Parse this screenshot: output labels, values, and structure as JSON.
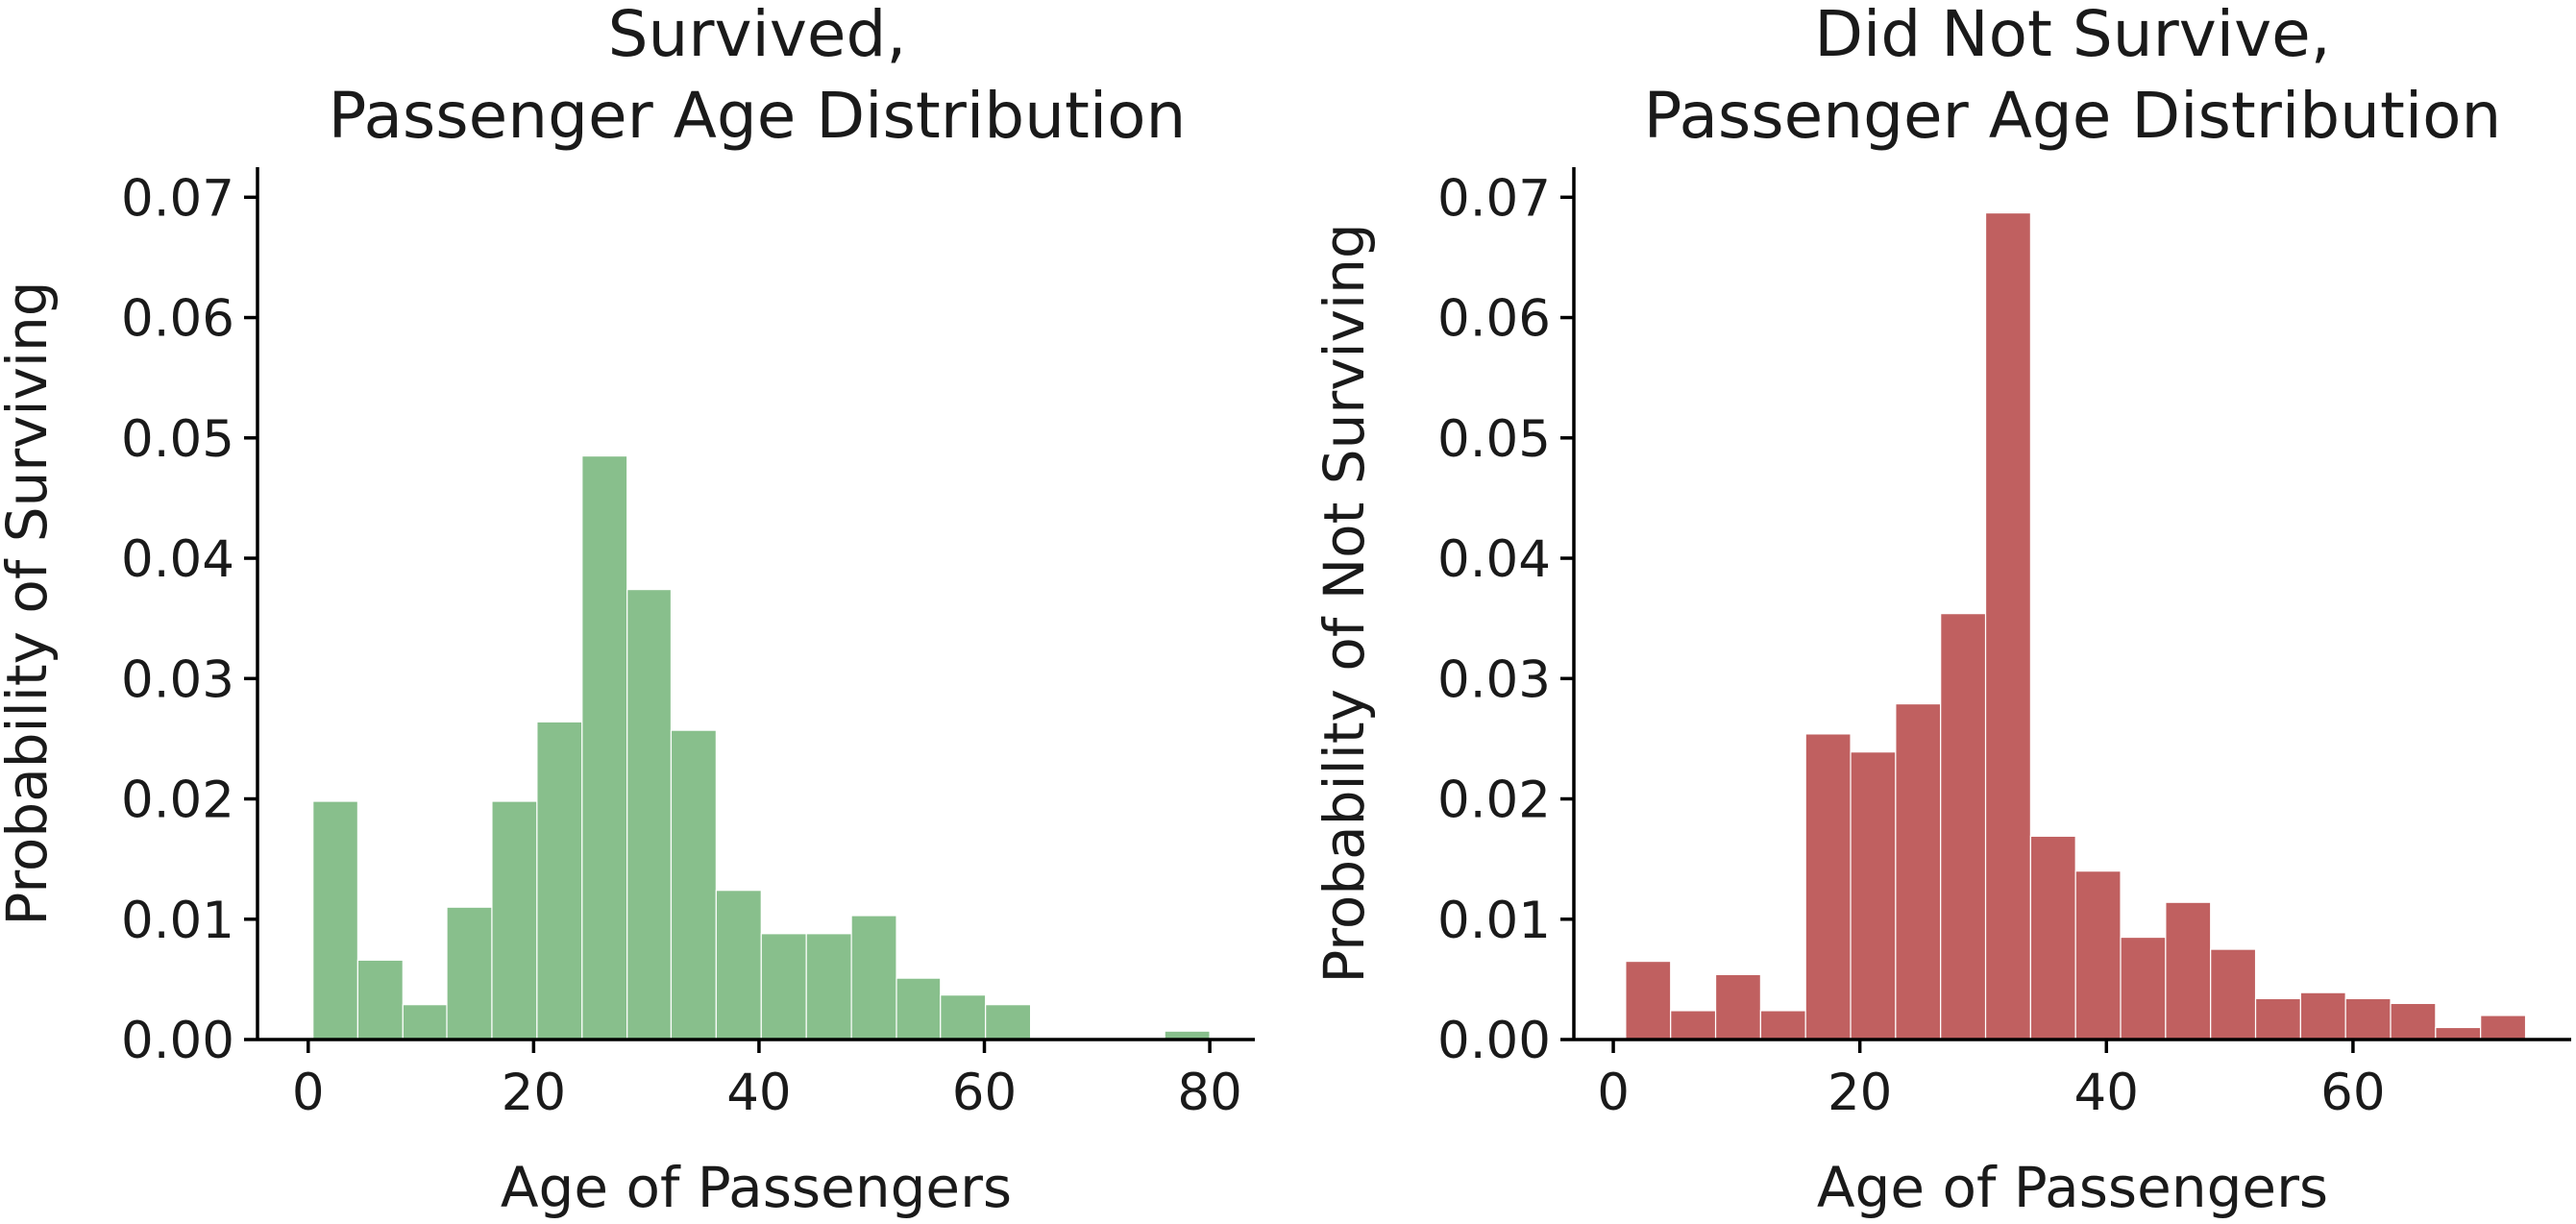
{
  "chart_data": [
    {
      "type": "bar",
      "title_lines": [
        "Survived,",
        "Passenger Age Distribution"
      ],
      "xlabel": "Age of Passengers",
      "ylabel": "Probability of Surviving",
      "xlim": [
        -4.5,
        84
      ],
      "ylim": [
        0,
        0.0725
      ],
      "xticks": [
        0,
        20,
        40,
        60,
        80
      ],
      "xtick_labels": [
        "0",
        "20",
        "40",
        "60",
        "80"
      ],
      "yticks": [
        0,
        0.01,
        0.02,
        0.03,
        0.04,
        0.05,
        0.06,
        0.07
      ],
      "ytick_labels": [
        "0.00",
        "0.01",
        "0.02",
        "0.03",
        "0.04",
        "0.05",
        "0.06",
        "0.07"
      ],
      "color": "#88bf8c",
      "bin_edges": [
        0.42,
        4.4,
        8.4,
        12.3,
        16.3,
        20.3,
        24.3,
        28.3,
        32.2,
        36.2,
        40.2,
        44.2,
        48.2,
        52.2,
        56.1,
        60.1,
        64.1,
        68.1,
        72.1,
        76.0,
        80.0
      ],
      "values": [
        0.0198,
        0.0066,
        0.0029,
        0.011,
        0.0198,
        0.0264,
        0.0485,
        0.0374,
        0.0257,
        0.0124,
        0.0088,
        0.0088,
        0.0103,
        0.0051,
        0.0037,
        0.0029,
        0.0,
        0.0,
        0.0,
        0.0007
      ]
    },
    {
      "type": "bar",
      "title_lines": [
        "Did Not Survive,",
        "Passenger Age Distribution"
      ],
      "xlabel": "Age of Passengers",
      "ylabel": "Probability of Not Surviving",
      "xlim": [
        -3.2,
        77.7
      ],
      "ylim": [
        0,
        0.0725
      ],
      "xticks": [
        0,
        20,
        40,
        60
      ],
      "xtick_labels": [
        "0",
        "20",
        "40",
        "60"
      ],
      "yticks": [
        0,
        0.01,
        0.02,
        0.03,
        0.04,
        0.05,
        0.06,
        0.07
      ],
      "ytick_labels": [
        "0.00",
        "0.01",
        "0.02",
        "0.03",
        "0.04",
        "0.05",
        "0.06",
        "0.07"
      ],
      "color": "#c06060",
      "bin_edges": [
        1.0,
        4.65,
        8.3,
        11.95,
        15.6,
        19.25,
        22.9,
        26.55,
        30.2,
        33.85,
        37.5,
        41.15,
        44.8,
        48.45,
        52.1,
        55.75,
        59.4,
        63.05,
        66.7,
        70.35,
        74.0
      ],
      "values": [
        0.0065,
        0.0024,
        0.0054,
        0.0024,
        0.0254,
        0.0239,
        0.0279,
        0.0354,
        0.0687,
        0.0169,
        0.014,
        0.0085,
        0.0114,
        0.0075,
        0.0034,
        0.0039,
        0.0034,
        0.003,
        0.001,
        0.002
      ]
    }
  ]
}
